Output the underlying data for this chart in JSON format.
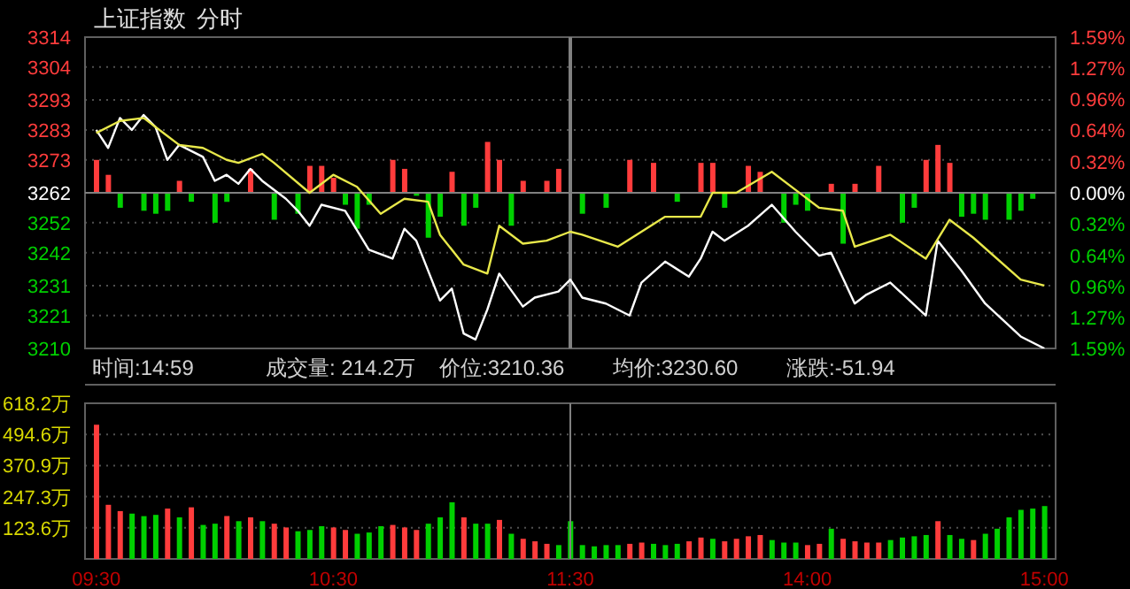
{
  "chart_data": [
    {
      "type": "line",
      "title": "上证指数",
      "subtitle": "分时",
      "annotations": [
        "时间:14:59",
        "成交量: 214.2万",
        "价位:3210.36",
        "均价:3230.60",
        "涨跌:-51.94"
      ],
      "categories": [
        null,
        null,
        null,
        null,
        null,
        null,
        null,
        null,
        null,
        null,
        null,
        null,
        null,
        null,
        null,
        null,
        null,
        null,
        null,
        null,
        null,
        null,
        null,
        null,
        null,
        null,
        null,
        null,
        null,
        null,
        null,
        null,
        null,
        null,
        null,
        null,
        null,
        null,
        null,
        null,
        null,
        null,
        null,
        null,
        null,
        null,
        null,
        null,
        null,
        null,
        null,
        null,
        null,
        null,
        null,
        null,
        null,
        null,
        null,
        null,
        null,
        null,
        null,
        null,
        null,
        null,
        null,
        null,
        null,
        null,
        null,
        null,
        null,
        null,
        null,
        null,
        null,
        null,
        null,
        null,
        null
      ],
      "ylim": [
        3210,
        3314
      ],
      "yticks": [
        3210,
        3221,
        3231,
        3242,
        3252,
        3262,
        3273,
        3283,
        3293,
        3304,
        3314
      ],
      "y2lim": [
        -1.59,
        1.59
      ],
      "y2ticks": [
        {
          "value": -1.59,
          "label": "1.59%"
        },
        {
          "value": -1.27,
          "label": "1.27%"
        },
        {
          "value": -0.96,
          "label": "0.96%"
        },
        {
          "value": -0.64,
          "label": "0.64%"
        },
        {
          "value": -0.32,
          "label": "0.32%"
        },
        {
          "value": 0,
          "label": "0.00%"
        },
        {
          "value": 0.32,
          "label": "0.32%"
        },
        {
          "value": 0.64,
          "label": "0.64%"
        },
        {
          "value": 0.96,
          "label": "0.96%"
        },
        {
          "value": 1.27,
          "label": "1.27%"
        },
        {
          "value": 1.59,
          "label": "1.59%"
        }
      ],
      "grid": "y",
      "ref_lines": [
        {
          "axis": "y",
          "value": 3262,
          "color": "#808080"
        }
      ],
      "series": [
        {
          "color": "#ffffff",
          "values": [
            3283,
            3277,
            3287,
            3283,
            3288,
            3284,
            3273,
            3278,
            null,
            3274,
            3266,
            3268,
            3265,
            3270,
            3266,
            null,
            3260,
            3256,
            3251,
            3258,
            null,
            3256,
            null,
            3243,
            null,
            3240,
            3250,
            3246,
            null,
            3226,
            3230,
            3215,
            3213,
            3223,
            3235,
            null,
            3224,
            3227,
            null,
            3229,
            3233,
            3227,
            null,
            3225,
            null,
            3221,
            3232,
            null,
            3239,
            null,
            3234,
            3240,
            3249,
            3246,
            null,
            3251,
            null,
            3258,
            null,
            3249,
            null,
            3241,
            3242,
            null,
            3225,
            3228,
            null,
            3232,
            null,
            null,
            3221,
            3246,
            null,
            3236,
            null,
            3225,
            null,
            null,
            3214,
            null,
            3210
          ]
        },
        {
          "color": "#e8e84a",
          "values": [
            3282,
            null,
            3286,
            null,
            3287,
            null,
            3281,
            3278,
            null,
            3277,
            null,
            3273,
            3272,
            null,
            3275,
            3272,
            null,
            null,
            3262,
            null,
            3268,
            null,
            3264,
            null,
            3255,
            null,
            3260,
            null,
            3259,
            3248,
            null,
            3238,
            null,
            3235,
            3251,
            null,
            3245,
            null,
            3246,
            null,
            3249,
            3248,
            null,
            null,
            3244,
            null,
            null,
            null,
            3254,
            null,
            null,
            3254,
            3262,
            null,
            3262,
            null,
            null,
            3269,
            null,
            3263,
            null,
            3257,
            null,
            3256,
            3244,
            null,
            null,
            3248,
            null,
            null,
            3240,
            null,
            3253,
            null,
            3247,
            null,
            null,
            null,
            3233,
            null,
            3231
          ]
        },
        {
          "type": "bar",
          "base": [
            3262,
            3262,
            3262,
            null,
            3262,
            3262,
            3262,
            3262,
            3262,
            null,
            3262,
            3262,
            null,
            3262,
            null,
            3262,
            null,
            3262,
            3262,
            3262,
            3262,
            3262,
            3262,
            3262,
            null,
            3262,
            3262,
            3262,
            3262,
            3262,
            3262,
            3262,
            3262,
            3262,
            3262,
            3262,
            3262,
            null,
            3262,
            3262,
            null,
            3262,
            null,
            3262,
            null,
            3262,
            null,
            3262,
            null,
            3262,
            null,
            3262,
            3262,
            3262,
            null,
            3262,
            3262,
            null,
            3262,
            3262,
            3262,
            null,
            3262,
            3262,
            3262,
            null,
            3262,
            null,
            3262,
            3262,
            3262,
            3262,
            3262,
            3262,
            3262,
            3262,
            null,
            3262,
            3262,
            3262,
            null
          ],
          "values": [
            11,
            6,
            -5,
            null,
            -6,
            -7,
            -6,
            4,
            -3,
            null,
            -10,
            -3,
            null,
            8,
            null,
            -9,
            null,
            -7,
            9,
            9,
            5,
            -4,
            -12,
            -4,
            null,
            11,
            8,
            -1,
            -15,
            -8,
            7,
            -11,
            -5,
            17,
            11,
            -11,
            4,
            null,
            4,
            8,
            null,
            -7,
            null,
            -5,
            null,
            11,
            null,
            10,
            null,
            -3,
            null,
            10,
            10,
            -5,
            null,
            9,
            7,
            null,
            -10,
            -4,
            -6,
            null,
            3,
            -17,
            3,
            null,
            9,
            null,
            -10,
            -5,
            11,
            16,
            10,
            -8,
            -7,
            -9,
            null,
            -9,
            -6,
            -2,
            null
          ],
          "colors": [
            "#ff3c3c",
            "#ff3c3c",
            "#00d000",
            null,
            "#00d000",
            "#00d000",
            "#00d000",
            "#ff3c3c",
            "#00d000",
            null,
            "#00d000",
            "#00d000",
            null,
            "#ff3c3c",
            null,
            "#00d000",
            null,
            "#00d000",
            "#ff3c3c",
            "#ff3c3c",
            "#ff3c3c",
            "#00d000",
            "#00d000",
            "#00d000",
            null,
            "#ff3c3c",
            "#ff3c3c",
            "#00d000",
            "#00d000",
            "#00d000",
            "#ff3c3c",
            "#00d000",
            "#00d000",
            "#ff3c3c",
            "#ff3c3c",
            "#00d000",
            "#ff3c3c",
            null,
            "#ff3c3c",
            "#ff3c3c",
            null,
            "#00d000",
            null,
            "#00d000",
            null,
            "#ff3c3c",
            null,
            "#ff3c3c",
            null,
            "#00d000",
            null,
            "#ff3c3c",
            "#ff3c3c",
            "#00d000",
            null,
            "#ff3c3c",
            "#ff3c3c",
            null,
            "#00d000",
            "#00d000",
            "#00d000",
            null,
            "#ff3c3c",
            "#00d000",
            "#ff3c3c",
            null,
            "#ff3c3c",
            null,
            "#00d000",
            "#00d000",
            "#ff3c3c",
            "#ff3c3c",
            "#ff3c3c",
            "#00d000",
            "#00d000",
            "#00d000",
            null,
            "#00d000",
            "#00d000",
            "#00d000",
            null
          ]
        }
      ]
    },
    {
      "type": "bar",
      "categories": [
        "09:30",
        null,
        null,
        null,
        null,
        null,
        null,
        null,
        null,
        null,
        null,
        null,
        null,
        null,
        null,
        null,
        null,
        null,
        null,
        null,
        "10:30",
        null,
        null,
        null,
        null,
        null,
        null,
        null,
        null,
        null,
        null,
        null,
        null,
        null,
        null,
        null,
        null,
        null,
        null,
        null,
        "11:30",
        null,
        null,
        null,
        null,
        null,
        null,
        null,
        null,
        null,
        null,
        null,
        null,
        null,
        null,
        null,
        null,
        null,
        null,
        null,
        "14:00",
        null,
        null,
        null,
        null,
        null,
        null,
        null,
        null,
        null,
        null,
        null,
        null,
        null,
        null,
        null,
        null,
        null,
        null,
        null,
        "15:00"
      ],
      "ylim": [
        0,
        618.2
      ],
      "yticks": [
        {
          "value": 123.6,
          "label": "123.6万"
        },
        {
          "value": 247.3,
          "label": "247.3万"
        },
        {
          "value": 370.9,
          "label": "370.9万"
        },
        {
          "value": 494.6,
          "label": "494.6万"
        },
        {
          "value": 618.2,
          "label": "618.2万"
        }
      ],
      "grid": "y",
      "ref_lines": [
        {
          "axis": "x",
          "value": "11:30",
          "color": "#808080"
        }
      ],
      "series": [
        {
          "values": [
            533,
            215,
            190,
            180,
            170,
            175,
            200,
            165,
            205,
            135,
            140,
            170,
            150,
            165,
            150,
            140,
            125,
            110,
            115,
            130,
            125,
            115,
            100,
            105,
            130,
            135,
            125,
            115,
            140,
            165,
            225,
            165,
            140,
            140,
            155,
            100,
            80,
            70,
            60,
            55,
            150,
            55,
            50,
            55,
            55,
            60,
            65,
            60,
            55,
            60,
            70,
            85,
            80,
            70,
            80,
            90,
            95,
            75,
            65,
            65,
            55,
            60,
            120,
            80,
            70,
            65,
            65,
            75,
            85,
            90,
            95,
            150,
            95,
            80,
            75,
            100,
            120,
            165,
            195,
            200,
            210
          ],
          "colors": [
            "#ff3c3c",
            "#ff3c3c",
            "#ff3c3c",
            "#00d000",
            "#00d000",
            "#00d000",
            "#ff3c3c",
            "#00d000",
            "#ff3c3c",
            "#00d000",
            "#00d000",
            "#ff3c3c",
            "#00d000",
            "#ff3c3c",
            "#00d000",
            "#ff3c3c",
            "#ff3c3c",
            "#00d000",
            "#00d000",
            "#00d000",
            "#ff3c3c",
            "#ff3c3c",
            "#00d000",
            "#00d000",
            "#00d000",
            "#ff3c3c",
            "#ff3c3c",
            "#ff3c3c",
            "#00d000",
            "#00d000",
            "#00d000",
            "#ff3c3c",
            "#00d000",
            "#00d000",
            "#ff3c3c",
            "#00d000",
            "#ff3c3c",
            "#ff3c3c",
            "#ff3c3c",
            "#00d000",
            "#00d000",
            "#00d000",
            "#00d000",
            "#00d000",
            "#00d000",
            "#ff3c3c",
            "#ff3c3c",
            "#00d000",
            "#00d000",
            "#00d000",
            "#ff3c3c",
            "#ff3c3c",
            "#00d000",
            "#ff3c3c",
            "#ff3c3c",
            "#ff3c3c",
            "#ff3c3c",
            "#00d000",
            "#00d000",
            "#00d000",
            "#ff3c3c",
            "#ff3c3c",
            "#00d000",
            "#ff3c3c",
            "#ff3c3c",
            "#ff3c3c",
            "#ff3c3c",
            "#00d000",
            "#00d000",
            "#00d000",
            "#00d000",
            "#ff3c3c",
            "#00d000",
            "#00d000",
            "#ff3c3c",
            "#00d000",
            "#00d000",
            "#00d000",
            "#00d000",
            "#00d000",
            "#00d000"
          ]
        }
      ]
    }
  ]
}
